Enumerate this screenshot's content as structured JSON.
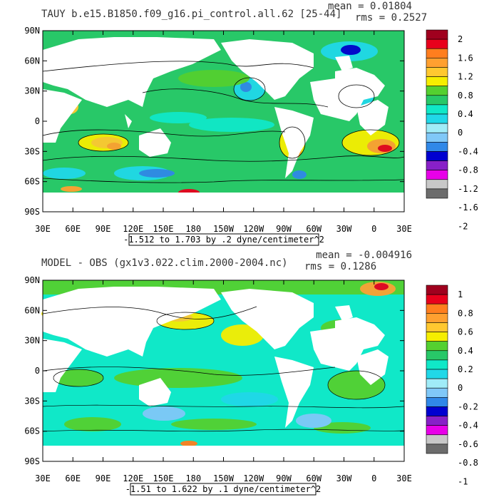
{
  "chart_data": [
    {
      "type": "heatmap",
      "title": "TAUY b.e15.B1850.f09_g16.pi_control.all.62 [25-44]",
      "stats": {
        "mean_label": "mean = 0.01804",
        "rms_label": "rms = 0.2527"
      },
      "subtitle": "-1.512 to 1.703 by .2 dyne/centimeter^2",
      "x_ticks": [
        "30E",
        "60E",
        "90E",
        "120E",
        "150E",
        "180",
        "150W",
        "120W",
        "90W",
        "60W",
        "30W",
        "0",
        "30E"
      ],
      "y_ticks": [
        "90N",
        "60N",
        "30N",
        "0",
        "30S",
        "60S",
        "90S"
      ],
      "colorbar": {
        "labels": [
          "2",
          "1.6",
          "1.2",
          "0.8",
          "0.4",
          "0",
          "-0.4",
          "-0.8",
          "-1.2",
          "-1.6",
          "-2"
        ],
        "colors": [
          "#a0001e",
          "#e8001c",
          "#ff7e1e",
          "#ffa030",
          "#ffc830",
          "#f6ee00",
          "#54d030",
          "#28c868",
          "#10e8c8",
          "#20d8e8",
          "#a0ecf8",
          "#80c8f8",
          "#3088e8",
          "#0000d0",
          "#8820c8",
          "#e800e8",
          "#c8c8c8",
          "#6c6c6c"
        ]
      }
    },
    {
      "type": "heatmap",
      "title": "MODEL - OBS (gx1v3.022.clim.2000-2004.nc)",
      "stats": {
        "mean_label": "mean = -0.004916",
        "rms_label": "rms = 0.1286"
      },
      "subtitle": "-1.51 to 1.622 by .1 dyne/centimeter^2",
      "x_ticks": [
        "30E",
        "60E",
        "90E",
        "120E",
        "150E",
        "180",
        "150W",
        "120W",
        "90W",
        "60W",
        "30W",
        "0",
        "30E"
      ],
      "y_ticks": [
        "90N",
        "60N",
        "30N",
        "0",
        "30S",
        "60S",
        "90S"
      ],
      "colorbar": {
        "labels": [
          "1",
          "0.8",
          "0.6",
          "0.4",
          "0.2",
          "0",
          "-0.2",
          "-0.4",
          "-0.6",
          "-0.8",
          "-1"
        ],
        "colors": [
          "#a0001e",
          "#e8001c",
          "#ff7e1e",
          "#ffa030",
          "#ffc830",
          "#f6ee00",
          "#54d030",
          "#28c868",
          "#10e8c8",
          "#20d8e8",
          "#a0ecf8",
          "#80c8f8",
          "#3088e8",
          "#0000d0",
          "#8820c8",
          "#e800e8",
          "#c8c8c8",
          "#6c6c6c"
        ]
      }
    }
  ]
}
